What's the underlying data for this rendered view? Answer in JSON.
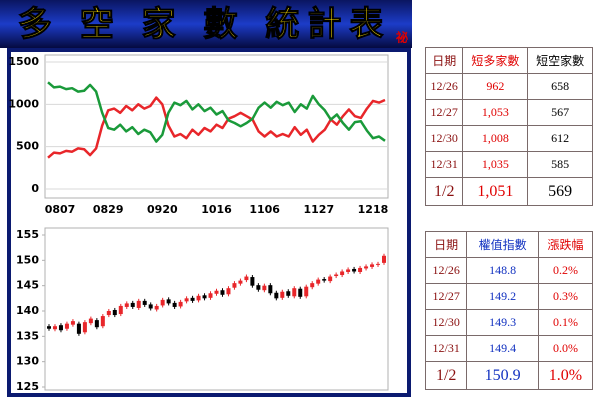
{
  "header": {
    "title": "多 空 家 數 統計表",
    "stamp": "祕"
  },
  "chart_data": [
    {
      "type": "line",
      "categories": [
        null,
        null,
        "0807",
        null,
        null,
        null,
        null,
        null,
        null,
        null,
        "0829",
        null,
        null,
        null,
        null,
        null,
        null,
        null,
        null,
        "0920",
        null,
        null,
        null,
        null,
        null,
        null,
        null,
        null,
        "1016",
        null,
        null,
        null,
        null,
        null,
        null,
        null,
        "1106",
        null,
        null,
        null,
        null,
        null,
        null,
        null,
        null,
        "1127",
        null,
        null,
        null,
        null,
        null,
        null,
        null,
        null,
        "1218",
        null,
        null
      ],
      "series": [
        {
          "color": "#e8262a",
          "values": [
            370,
            430,
            420,
            450,
            440,
            480,
            470,
            400,
            480,
            750,
            930,
            950,
            900,
            980,
            930,
            1000,
            950,
            980,
            1080,
            1000,
            750,
            620,
            650,
            600,
            700,
            640,
            720,
            680,
            760,
            720,
            830,
            860,
            900,
            860,
            820,
            680,
            620,
            680,
            620,
            650,
            620,
            730,
            640,
            700,
            560,
            640,
            700,
            820,
            760,
            860,
            940,
            860,
            840,
            950,
            1040,
            1020,
            1051
          ]
        },
        {
          "color": "#1a9a3a",
          "values": [
            1260,
            1200,
            1210,
            1180,
            1190,
            1150,
            1160,
            1230,
            1150,
            900,
            720,
            700,
            760,
            680,
            730,
            650,
            700,
            670,
            560,
            640,
            900,
            1020,
            990,
            1040,
            940,
            1000,
            920,
            960,
            880,
            920,
            810,
            780,
            740,
            780,
            830,
            960,
            1020,
            960,
            1030,
            990,
            1020,
            910,
            1000,
            950,
            1100,
            1000,
            930,
            820,
            880,
            780,
            700,
            790,
            800,
            690,
            600,
            620,
            569
          ]
        }
      ],
      "ylim": [
        0,
        1500
      ],
      "yticks": [
        0,
        500,
        1000,
        1500
      ],
      "grid": true
    },
    {
      "type": "candlestick",
      "open": [
        137.0,
        136.4,
        137.2,
        136.5,
        137.3,
        137.5,
        135.8,
        137.6,
        138.2,
        137.0,
        139.2,
        140.2,
        139.4,
        140.8,
        141.6,
        140.6,
        142.0,
        141.3,
        140.3,
        141.1,
        142.3,
        141.6,
        140.9,
        141.9,
        142.6,
        142.1,
        143.1,
        142.6,
        143.4,
        144.1,
        143.3,
        144.6,
        145.4,
        146.1,
        146.7,
        145.1,
        144.1,
        145.1,
        143.6,
        142.6,
        143.9,
        142.9,
        144.4,
        142.9,
        144.7,
        145.4,
        146.3,
        145.9,
        146.9,
        147.1,
        147.7,
        148.3,
        147.7,
        148.4,
        148.7,
        149.1,
        149.5
      ],
      "high": [
        137.4,
        137.4,
        137.6,
        137.9,
        138.4,
        137.9,
        138.2,
        138.9,
        138.6,
        139.4,
        140.4,
        140.6,
        141.4,
        141.9,
        142.0,
        142.4,
        142.4,
        141.7,
        141.4,
        142.6,
        142.7,
        142.0,
        142.2,
        142.9,
        143.0,
        143.4,
        143.5,
        143.9,
        144.4,
        144.5,
        144.9,
        145.9,
        146.4,
        147.2,
        147.1,
        145.5,
        145.4,
        145.5,
        144.0,
        144.2,
        144.3,
        144.9,
        144.8,
        145.2,
        145.9,
        146.6,
        146.7,
        147.2,
        147.6,
        148.2,
        148.6,
        148.7,
        148.9,
        149.2,
        149.6,
        149.7,
        151.3
      ],
      "low": [
        136.1,
        136.0,
        135.8,
        136.1,
        136.9,
        135.1,
        135.4,
        137.2,
        136.4,
        136.6,
        138.8,
        138.8,
        139.0,
        140.4,
        140.4,
        140.2,
        140.8,
        140.1,
        139.9,
        140.7,
        141.1,
        140.4,
        140.5,
        141.5,
        141.6,
        141.7,
        142.1,
        142.2,
        143.0,
        142.8,
        142.9,
        144.2,
        145.0,
        145.7,
        144.6,
        143.8,
        143.7,
        143.1,
        142.1,
        142.2,
        142.6,
        142.5,
        142.4,
        142.5,
        144.3,
        145.0,
        145.6,
        145.5,
        146.5,
        146.7,
        147.3,
        147.4,
        147.3,
        148.0,
        148.3,
        148.7,
        149.1
      ],
      "close": [
        136.5,
        137.0,
        136.2,
        137.5,
        138.0,
        135.5,
        137.8,
        138.5,
        136.8,
        139.0,
        140.0,
        139.2,
        141.0,
        141.5,
        140.8,
        142.0,
        141.2,
        140.5,
        141.0,
        142.2,
        141.5,
        140.8,
        141.8,
        142.5,
        142.0,
        143.0,
        142.5,
        143.5,
        144.0,
        143.2,
        144.5,
        145.5,
        146.0,
        146.8,
        145.0,
        144.2,
        145.0,
        143.5,
        142.5,
        143.8,
        143.0,
        144.5,
        142.8,
        144.8,
        145.5,
        146.2,
        146.0,
        146.8,
        147.2,
        147.8,
        148.2,
        147.8,
        148.5,
        148.8,
        149.2,
        149.3,
        150.9
      ],
      "up_color": "#e8262a",
      "down_color": "#000000",
      "ylim": [
        125,
        155
      ],
      "yticks": [
        125,
        130,
        135,
        140,
        145,
        150,
        155
      ],
      "grid": false
    }
  ],
  "tables": [
    {
      "header": [
        "日期",
        "短多家數",
        "短空家數"
      ],
      "rows": [
        [
          "12/26",
          "962",
          "658"
        ],
        [
          "12/27",
          "1,053",
          "567"
        ],
        [
          "12/30",
          "1,008",
          "612"
        ],
        [
          "12/31",
          "1,035",
          "585"
        ],
        [
          "1/2",
          "1,051",
          "569"
        ]
      ]
    },
    {
      "header": [
        "日期",
        "權值指數",
        "漲跌幅"
      ],
      "rows": [
        [
          "12/26",
          "148.8",
          "0.2%"
        ],
        [
          "12/27",
          "149.2",
          "0.3%"
        ],
        [
          "12/30",
          "149.3",
          "0.1%"
        ],
        [
          "12/31",
          "149.4",
          "0.0%"
        ],
        [
          "1/2",
          "150.9",
          "1.0%"
        ]
      ]
    }
  ]
}
